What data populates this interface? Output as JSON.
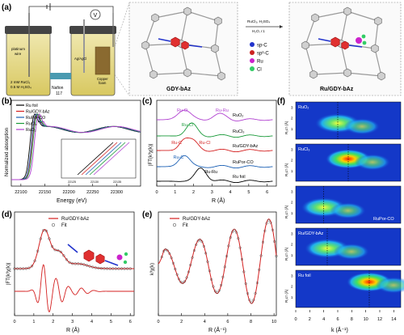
{
  "panel_a": {
    "letter": "(a)",
    "battery_label": "V",
    "left_cell": [
      "platinum",
      "wire",
      "2 mM RuCl₃",
      "0.5 M H₂SO₄"
    ],
    "right_cell": [
      "Ag/AgCl",
      "Copper",
      "foam"
    ],
    "membrane": [
      "Nafion",
      "117"
    ],
    "gdy_label": "GDY-bAz",
    "reaction": [
      "RuCl₃, H₂SO₄",
      "H₂O, r.t."
    ],
    "legend": [
      "sp-C",
      "sp²-C",
      "Ru",
      "Cl"
    ],
    "legend_colors": [
      "#2233cc",
      "#cc2222",
      "#cc22cc",
      "#33cc66"
    ],
    "product_label": "Ru/GDY-bAz"
  },
  "chart_data": [
    {
      "panel": "(b)",
      "type": "line",
      "xlabel": "Energy (eV)",
      "ylabel": "Normalized absorption",
      "xlim": [
        22080,
        22350
      ],
      "xticks": [
        22100,
        22150,
        22200,
        22250,
        22300
      ],
      "legend_position": "top-left",
      "series": [
        {
          "name": "Ru foil",
          "color": "#000000"
        },
        {
          "name": "Ru/GDY-bAz",
          "color": "#d42020"
        },
        {
          "name": "RuPor-CO",
          "color": "#1a5fb4"
        },
        {
          "name": "RuCl₃",
          "color": "#1a9a3a"
        },
        {
          "name": "RuO₂",
          "color": "#b040d0"
        }
      ],
      "inset_xticks": [
        "22125",
        "22130",
        "22135"
      ]
    },
    {
      "panel": "(c)",
      "type": "line",
      "xlabel": "R (Å)",
      "ylabel": "|FT(k³χ(k)|",
      "xlim": [
        0,
        6.5
      ],
      "xticks": [
        0,
        1,
        2,
        3,
        4,
        5,
        6
      ],
      "series": [
        {
          "name": "RuO₂",
          "color": "#b040d0",
          "annotations": [
            "Ru-O",
            "Ru-Ru"
          ]
        },
        {
          "name": "RuCl₃",
          "color": "#1a9a3a",
          "annotations": [
            "Ru-Cl"
          ]
        },
        {
          "name": "Ru/GDY-bAz",
          "color": "#d42020",
          "annotations": [
            "Ru-C",
            "Ru-Cl"
          ]
        },
        {
          "name": "RuPor-CO",
          "color": "#1a5fb4",
          "annotations": [
            "Ru-C"
          ]
        },
        {
          "name": "Ru foil",
          "color": "#000000",
          "annotations": [
            "Ru-Ru"
          ]
        }
      ]
    },
    {
      "panel": "(d)",
      "type": "line",
      "xlabel": "R (Å)",
      "ylabel": "|FT(k³χ(k)|",
      "xlim": [
        0,
        6.2
      ],
      "xticks": [
        0,
        1,
        2,
        3,
        4,
        5,
        6
      ],
      "legend": [
        "Ru/GDY-bAz",
        "Fit"
      ]
    },
    {
      "panel": "(e)",
      "type": "line",
      "xlabel": "R (Å⁻¹)",
      "ylabel": "k³χ(k)",
      "xlim": [
        0,
        10.2
      ],
      "xticks": [
        0,
        2,
        4,
        6,
        8,
        10
      ],
      "legend": [
        "Ru/GDY-bAz",
        "Fit"
      ]
    },
    {
      "panel": "(f)",
      "type": "heatmap",
      "xlabel": "k (Å⁻¹)",
      "ylabel": "R₁ᴄᴛ (Å)",
      "xticks": [
        0,
        2,
        4,
        6,
        8,
        10,
        12,
        14
      ],
      "yticks": [
        1,
        2,
        3
      ],
      "maps": [
        {
          "label": "RuO₂",
          "peak_k": 6.0,
          "peak_R": 1.5
        },
        {
          "label": "RuCl₃",
          "peak_k": 7.5,
          "peak_R": 2.1
        },
        {
          "label": "RuPor-CO",
          "peak_k": 4.0,
          "peak_R": 1.5
        },
        {
          "label": "Ru/GDY-bAz",
          "peak_k": 4.5,
          "peak_R": 1.6
        },
        {
          "label": "Ru foil",
          "peak_k": 10.5,
          "peak_R": 2.4
        }
      ]
    }
  ]
}
